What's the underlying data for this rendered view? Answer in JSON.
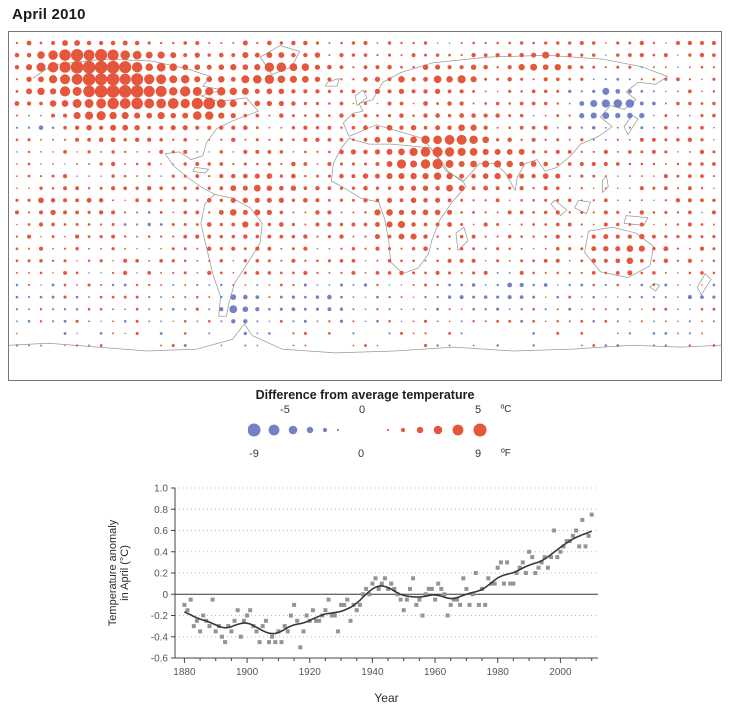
{
  "page": {
    "title": "April 2010"
  },
  "map": {
    "colors": {
      "warm": "#e4573c",
      "cool": "#7381c6",
      "coast": "#9a9a9a",
      "border": "#777777"
    }
  },
  "legend": {
    "title": "Difference from average temperature",
    "celsius": {
      "labels": [
        "-5",
        "0",
        "5"
      ],
      "unit": "ºC"
    },
    "fahrenheit": {
      "labels": [
        "-9",
        "0",
        "9"
      ],
      "unit": "ºF"
    }
  },
  "chart_data": [
    {
      "type": "heatmap",
      "subtype": "dot-grid-map",
      "title": "April 2010",
      "projection": "equirectangular",
      "lon_range": [
        -180,
        180
      ],
      "lat_range": [
        -90,
        90
      ],
      "value_units": "difference from average temperature, °C",
      "value_range": [
        -5,
        5
      ],
      "base_anomaly": 0.6,
      "noise_amplitude": 0.7,
      "zonal_offsets": [
        {
          "lat_max": -38,
          "delta": -0.55
        }
      ],
      "anomaly_blobs": [
        {
          "name": "alaska-nw-canada-warm",
          "lon": -128,
          "lat": 60,
          "amp": 4.4,
          "rlon": 34,
          "rlat": 16
        },
        {
          "name": "beaufort-arctic-warm",
          "lon": -140,
          "lat": 76,
          "amp": 3.5,
          "rlon": 30,
          "rlat": 7
        },
        {
          "name": "hudson-bay-warm",
          "lon": -82,
          "lat": 54,
          "amp": 3.0,
          "rlon": 16,
          "rlat": 11
        },
        {
          "name": "greenland-n-atlantic-warm",
          "lon": -45,
          "lat": 68,
          "amp": 2.6,
          "rlon": 22,
          "rlat": 12
        },
        {
          "name": "arctic-russia-warm",
          "lon": 90,
          "lat": 75,
          "amp": 2.0,
          "rlon": 18,
          "rlat": 6
        },
        {
          "name": "scandinavia-warm",
          "lon": 15,
          "lat": 62,
          "amp": 1.4,
          "rlon": 9,
          "rlat": 6
        },
        {
          "name": "west-russia-warm",
          "lon": 42,
          "lat": 66,
          "amp": 2.0,
          "rlon": 16,
          "rlat": 8
        },
        {
          "name": "sahara-middle-east-warm",
          "lon": 32,
          "lat": 24,
          "amp": 2.8,
          "rlon": 28,
          "rlat": 16
        },
        {
          "name": "middle-east-core-warm",
          "lon": 50,
          "lat": 33,
          "amp": 1.5,
          "rlon": 10,
          "rlat": 7
        },
        {
          "name": "equatorial-africa-warm",
          "lon": 20,
          "lat": -8,
          "amp": 1.4,
          "rlon": 20,
          "rlat": 12
        },
        {
          "name": "south-asia-warm",
          "lon": 80,
          "lat": 20,
          "amp": 1.4,
          "rlon": 18,
          "rlat": 10
        },
        {
          "name": "amazon-warm",
          "lon": -60,
          "lat": -3,
          "amp": 1.6,
          "rlon": 15,
          "rlat": 10
        },
        {
          "name": "tropical-atlantic-warm",
          "lon": -50,
          "lat": 12,
          "amp": 1.0,
          "rlon": 25,
          "rlat": 10
        },
        {
          "name": "australia-warm",
          "lon": 133,
          "lat": -24,
          "amp": 1.6,
          "rlon": 14,
          "rlat": 9
        },
        {
          "name": "central-pacific-warm",
          "lon": -155,
          "lat": 2,
          "amp": 1.0,
          "rlon": 15,
          "rlat": 7
        },
        {
          "name": "ne-asia-cool",
          "lon": 125,
          "lat": 52,
          "amp": -3.8,
          "rlon": 20,
          "rlat": 11
        },
        {
          "name": "chukchi-cool",
          "lon": 178,
          "lat": 70,
          "amp": -1.5,
          "rlon": 9,
          "rlat": 5
        },
        {
          "name": "n-pacific-cool",
          "lon": -165,
          "lat": 42,
          "amp": -1.7,
          "rlon": 15,
          "rlat": 8
        },
        {
          "name": "patagonia-cool",
          "lon": -64,
          "lat": -54,
          "amp": -2.6,
          "rlon": 10,
          "rlat": 9
        },
        {
          "name": "s-atlantic-cool",
          "lon": -15,
          "lat": -50,
          "amp": -1.3,
          "rlon": 20,
          "rlat": 7
        },
        {
          "name": "s-indian-cool",
          "lon": 70,
          "lat": -45,
          "amp": -1.2,
          "rlon": 22,
          "rlat": 7
        },
        {
          "name": "sw-pacific-cool",
          "lon": 165,
          "lat": -45,
          "amp": -1.0,
          "rlon": 12,
          "rlat": 7
        },
        {
          "name": "se-pacific-cool",
          "lon": -110,
          "lat": -10,
          "amp": -0.9,
          "rlon": 18,
          "rlat": 8
        }
      ],
      "legend_dot_radii": [
        1.1,
        2.1,
        3.2,
        4.3,
        5.4,
        6.5
      ]
    },
    {
      "type": "scatter",
      "title": "Temperature anomaly in April",
      "xlabel": "Year",
      "ylabel": "Temperature anomaly in April (°C)",
      "ylabel_lines": [
        "Temperature anomaly",
        "in April (°C)"
      ],
      "x_start": 1880,
      "xlim": [
        1877,
        2012
      ],
      "ylim": [
        -0.6,
        1.0
      ],
      "x_ticks": [
        1880,
        1900,
        1920,
        1940,
        1960,
        1980,
        2000
      ],
      "y_ticks": [
        1.0,
        0.8,
        0.6,
        0.4,
        0.2,
        0,
        -0.2,
        -0.4,
        -0.6
      ],
      "y_tick_labels": [
        "1.0",
        "0.8",
        "0.6",
        "0.4",
        "0.2",
        "0",
        "-0.2",
        "-0.4",
        "-0.6"
      ],
      "marker": "square",
      "marker_color": "#949494",
      "line_color": "#383838",
      "values": [
        -0.1,
        -0.15,
        -0.05,
        -0.3,
        -0.25,
        -0.35,
        -0.2,
        -0.25,
        -0.3,
        -0.05,
        -0.35,
        -0.3,
        -0.4,
        -0.45,
        -0.3,
        -0.35,
        -0.25,
        -0.15,
        -0.4,
        -0.25,
        -0.2,
        -0.15,
        -0.3,
        -0.35,
        -0.45,
        -0.3,
        -0.25,
        -0.45,
        -0.4,
        -0.45,
        -0.35,
        -0.45,
        -0.3,
        -0.35,
        -0.2,
        -0.1,
        -0.25,
        -0.5,
        -0.35,
        -0.2,
        -0.25,
        -0.15,
        -0.25,
        -0.25,
        -0.2,
        -0.15,
        -0.05,
        -0.2,
        -0.2,
        -0.35,
        -0.1,
        -0.1,
        -0.05,
        -0.25,
        -0.1,
        -0.15,
        -0.1,
        0.0,
        0.05,
        0.0,
        0.1,
        0.15,
        0.05,
        0.1,
        0.15,
        0.05,
        0.1,
        0.05,
        0.0,
        -0.05,
        -0.15,
        -0.05,
        0.05,
        0.15,
        -0.1,
        -0.05,
        -0.2,
        0.0,
        0.05,
        0.05,
        -0.05,
        0.1,
        0.05,
        0.0,
        -0.2,
        -0.1,
        -0.05,
        -0.05,
        -0.1,
        0.15,
        0.05,
        -0.1,
        0.0,
        0.2,
        -0.1,
        0.05,
        -0.1,
        0.15,
        0.1,
        0.1,
        0.25,
        0.3,
        0.1,
        0.3,
        0.1,
        0.1,
        0.2,
        0.25,
        0.3,
        0.2,
        0.4,
        0.35,
        0.2,
        0.25,
        0.3,
        0.35,
        0.25,
        0.35,
        0.6,
        0.35,
        0.4,
        0.45,
        0.5,
        0.5,
        0.55,
        0.6,
        0.45,
        0.7,
        0.45,
        0.55,
        0.75
      ]
    }
  ]
}
